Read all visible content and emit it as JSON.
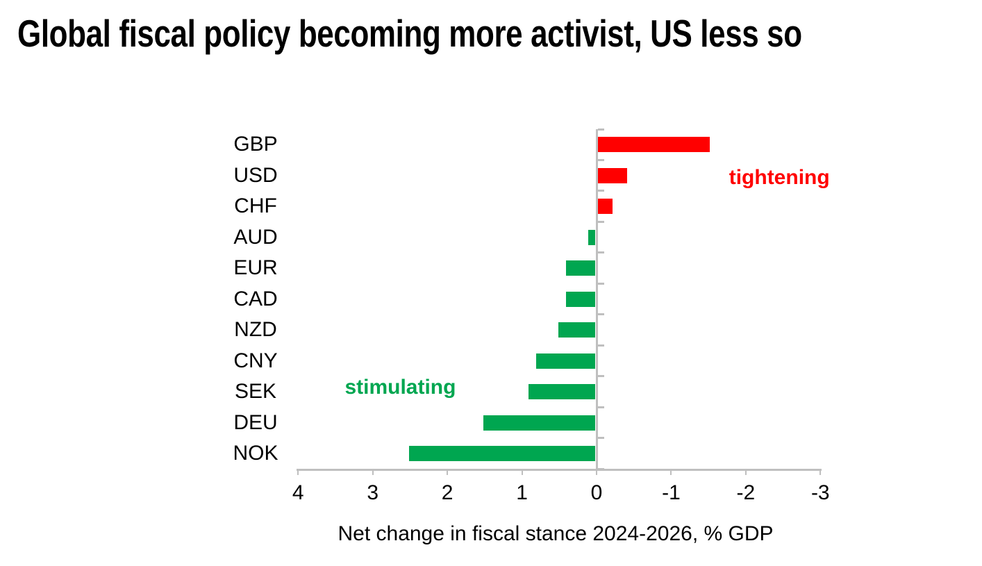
{
  "title": "Global fiscal policy becoming more activist, US less so",
  "chart_data": {
    "type": "bar",
    "orientation": "horizontal",
    "title": "Global fiscal policy becoming more activist, US less so",
    "categories": [
      "GBP",
      "USD",
      "CHF",
      "AUD",
      "EUR",
      "CAD",
      "NZD",
      "CNY",
      "SEK",
      "DEU",
      "NOK"
    ],
    "values": [
      -1.5,
      -0.4,
      -0.2,
      0.1,
      0.4,
      0.4,
      0.5,
      0.8,
      0.9,
      1.5,
      2.5
    ],
    "xlabel": "Net change in fiscal stance 2024-2026, % GDP",
    "xticks": [
      "4",
      "3",
      "2",
      "1",
      "0",
      "-1",
      "-2",
      "-3"
    ],
    "xtick_values": [
      4,
      3,
      2,
      1,
      0,
      -1,
      -2,
      -3
    ],
    "xlim": [
      4,
      -3
    ],
    "x_axis_reversed": true,
    "grid": false,
    "legend": false,
    "colors": {
      "stimulating": "#00A650",
      "tightening": "#FF0000",
      "axis": "#BFBFBF",
      "text": "#000000"
    },
    "annotations": [
      {
        "text": "tightening",
        "color": "#FF0000",
        "x": -2.45,
        "row_index": 1
      },
      {
        "text": "stimulating",
        "color": "#00A650",
        "x": 2.63,
        "row_index": 8
      }
    ]
  }
}
